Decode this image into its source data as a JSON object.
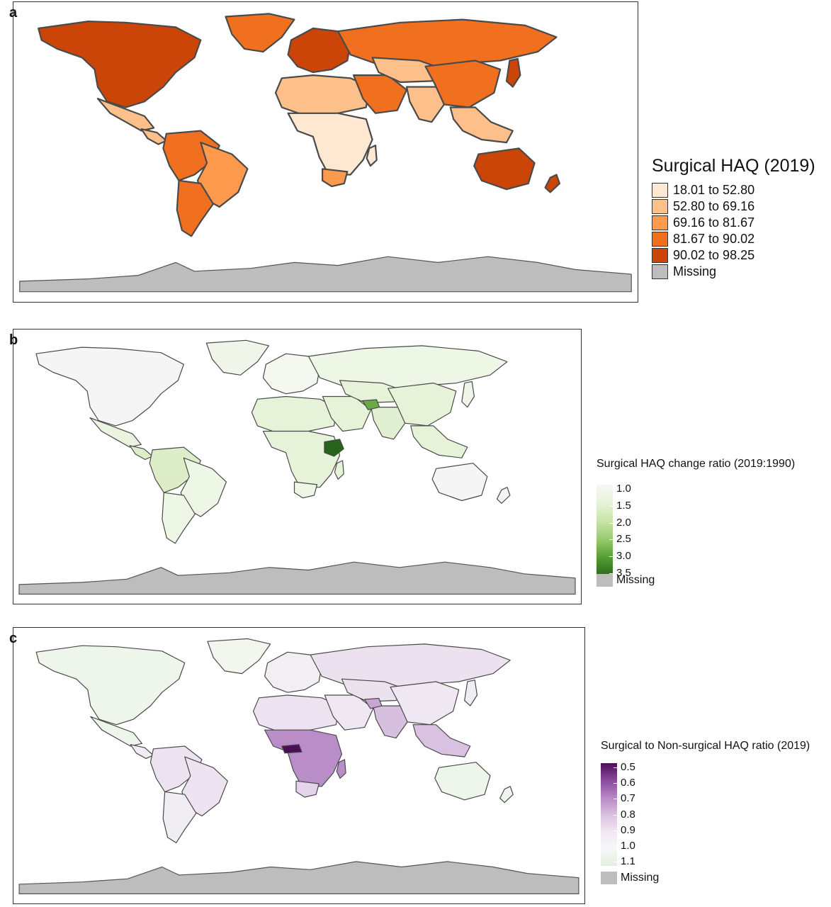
{
  "panels": [
    {
      "letter": "a",
      "legend": {
        "title": "Surgical HAQ (2019)",
        "items": [
          {
            "label": "18.01 to 52.80",
            "color": "#fee8d2"
          },
          {
            "label": "52.80 to 69.16",
            "color": "#fdc08a"
          },
          {
            "label": "69.16 to 81.67",
            "color": "#fd9a4d"
          },
          {
            "label": "81.67 to 90.02",
            "color": "#f0701f"
          },
          {
            "label": "90.02 to 98.25",
            "color": "#cc4508"
          },
          {
            "label": "Missing",
            "color": "#bdbdbd"
          }
        ]
      }
    },
    {
      "letter": "b",
      "legend": {
        "title": "Surgical HAQ change ratio (2019:1990)",
        "ticks": [
          "1.0",
          "1.5",
          "2.0",
          "2.5",
          "3.0",
          "3.5"
        ],
        "gradient": [
          "#f7f7f7",
          "#e6f3d8",
          "#c6e5a5",
          "#93c96a",
          "#4f9a30",
          "#27641a"
        ],
        "missing_label": "Missing",
        "missing_color": "#bdbdbd"
      }
    },
    {
      "letter": "c",
      "legend": {
        "title": "Surgical to Non-surgical HAQ ratio (2019)",
        "ticks": [
          "0.5",
          "0.6",
          "0.7",
          "0.8",
          "0.9",
          "1.0",
          "1.1"
        ],
        "gradient": [
          "#4b0e55",
          "#8a4a9e",
          "#b787c3",
          "#d9c0e0",
          "#f1e7f2",
          "#f7f7f7",
          "#e2f0dd"
        ],
        "missing_label": "Missing",
        "missing_color": "#bdbdbd"
      }
    }
  ],
  "map_colors": {
    "a": {
      "north_america": "#cc4508",
      "greenland": "#f0701f",
      "mexico": "#fdc08a",
      "central_america": "#fdc08a",
      "south_america_north": "#f0701f",
      "brazil": "#fd9a4d",
      "south_america_south": "#f0701f",
      "europe": "#cc4508",
      "russia": "#f0701f",
      "north_africa": "#fdc08a",
      "sub_saharan_africa": "#fee8d2",
      "south_africa": "#fd9a4d",
      "middle_east": "#f0701f",
      "central_asia": "#fdc08a",
      "south_asia": "#fdc08a",
      "china": "#f0701f",
      "southeast_asia": "#fdc08a",
      "japan": "#cc4508",
      "australia": "#cc4508",
      "new_zealand": "#cc4508",
      "madagascar": "#fee8d2",
      "antarctica": "#bdbdbd"
    },
    "b": {
      "north_america": "#f5f5f5",
      "greenland": "#f0f5ea",
      "mexico": "#eaf4de",
      "central_america": "#dcedc7",
      "south_america_north": "#dcedc7",
      "brazil": "#eef6e6",
      "south_america_south": "#eef6e6",
      "europe": "#f5f8f0",
      "russia": "#eef6e6",
      "north_africa": "#e6f3d8",
      "sub_saharan_africa": "#e6f3d8",
      "ethiopia": "#27641a",
      "south_africa": "#eef6e6",
      "middle_east": "#e6f3d8",
      "afghanistan": "#6aaa45",
      "central_asia": "#e6f3d8",
      "south_asia": "#e1efd2",
      "china": "#e6f3d8",
      "southeast_asia": "#e6f3d8",
      "japan": "#f0f5ea",
      "australia": "#f5f5f5",
      "new_zealand": "#f5f5f5",
      "madagascar": "#e6f3d8",
      "antarctica": "#bdbdbd"
    },
    "c": {
      "north_america": "#eef5ea",
      "greenland": "#f2f6ef",
      "mexico": "#eef5ea",
      "central_america": "#f1ecf3",
      "south_america_north": "#ede2f0",
      "brazil": "#eee3f0",
      "south_america_south": "#f1eef3",
      "europe": "#f2eef4",
      "russia": "#ece2ef",
      "north_africa": "#ede3f0",
      "sub_saharan_africa": "#b98dc7",
      "central_african_republic": "#4b0e55",
      "south_africa": "#e4d3ea",
      "middle_east": "#efe7f2",
      "afghanistan": "#c8a6d2",
      "central_asia": "#ece2ef",
      "south_asia": "#d7bfe0",
      "china": "#efe8f2",
      "southeast_asia": "#d9c2e1",
      "japan": "#f1eef3",
      "australia": "#eef5ea",
      "new_zealand": "#eef5ea",
      "madagascar": "#b98dc7",
      "antarctica": "#bdbdbd"
    }
  }
}
